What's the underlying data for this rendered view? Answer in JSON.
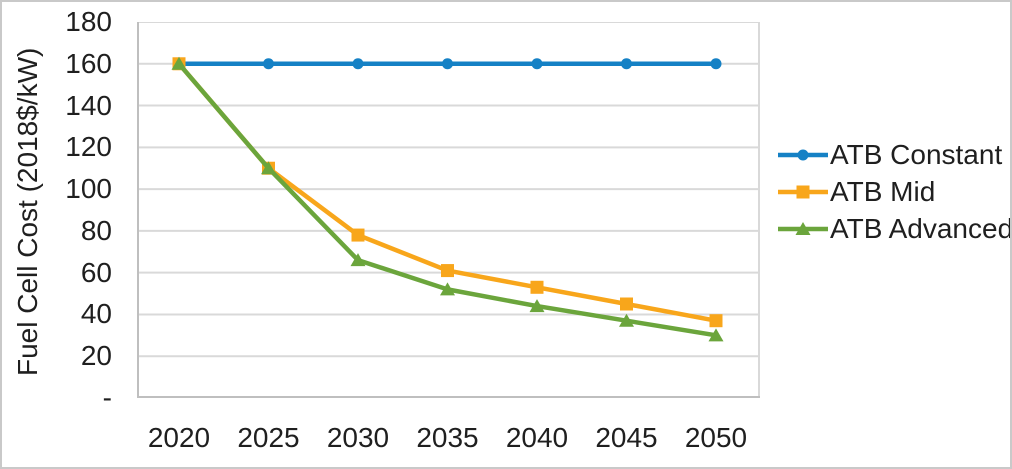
{
  "window": {
    "background": "#FFFFFF",
    "border_color": "#C9C9C9"
  },
  "colors": {
    "gridline": "#D9D9D9",
    "axis_line": "#BFBFBF",
    "text": "#1F1F1F"
  },
  "chart_data": {
    "type": "line",
    "title": "",
    "ylabel": "Fuel Cell Cost (2018$/kW)",
    "xlabel": "",
    "x": [
      2020,
      2025,
      2030,
      2035,
      2040,
      2045,
      2050
    ],
    "x_labels": [
      "2020",
      "2025",
      "2030",
      "2035",
      "2040",
      "2045",
      "2050"
    ],
    "ylim": [
      0,
      180
    ],
    "ytick_step": 20,
    "ytick_labels": [
      "-",
      "20",
      "40",
      "60",
      "80",
      "100",
      "120",
      "140",
      "160",
      "180"
    ],
    "grid": true,
    "legend_position": "right",
    "series": [
      {
        "name": "ATB Constant",
        "marker": "circle",
        "color": "#1581C5",
        "values": [
          160,
          160,
          160,
          160,
          160,
          160,
          160
        ]
      },
      {
        "name": "ATB Mid",
        "marker": "square",
        "color": "#F8A61B",
        "values": [
          160,
          110,
          78,
          61,
          53,
          45,
          37
        ]
      },
      {
        "name": "ATB Advanced",
        "marker": "triangle",
        "color": "#6BA53C",
        "values": [
          160,
          110,
          66,
          52,
          44,
          37,
          30
        ]
      }
    ]
  }
}
